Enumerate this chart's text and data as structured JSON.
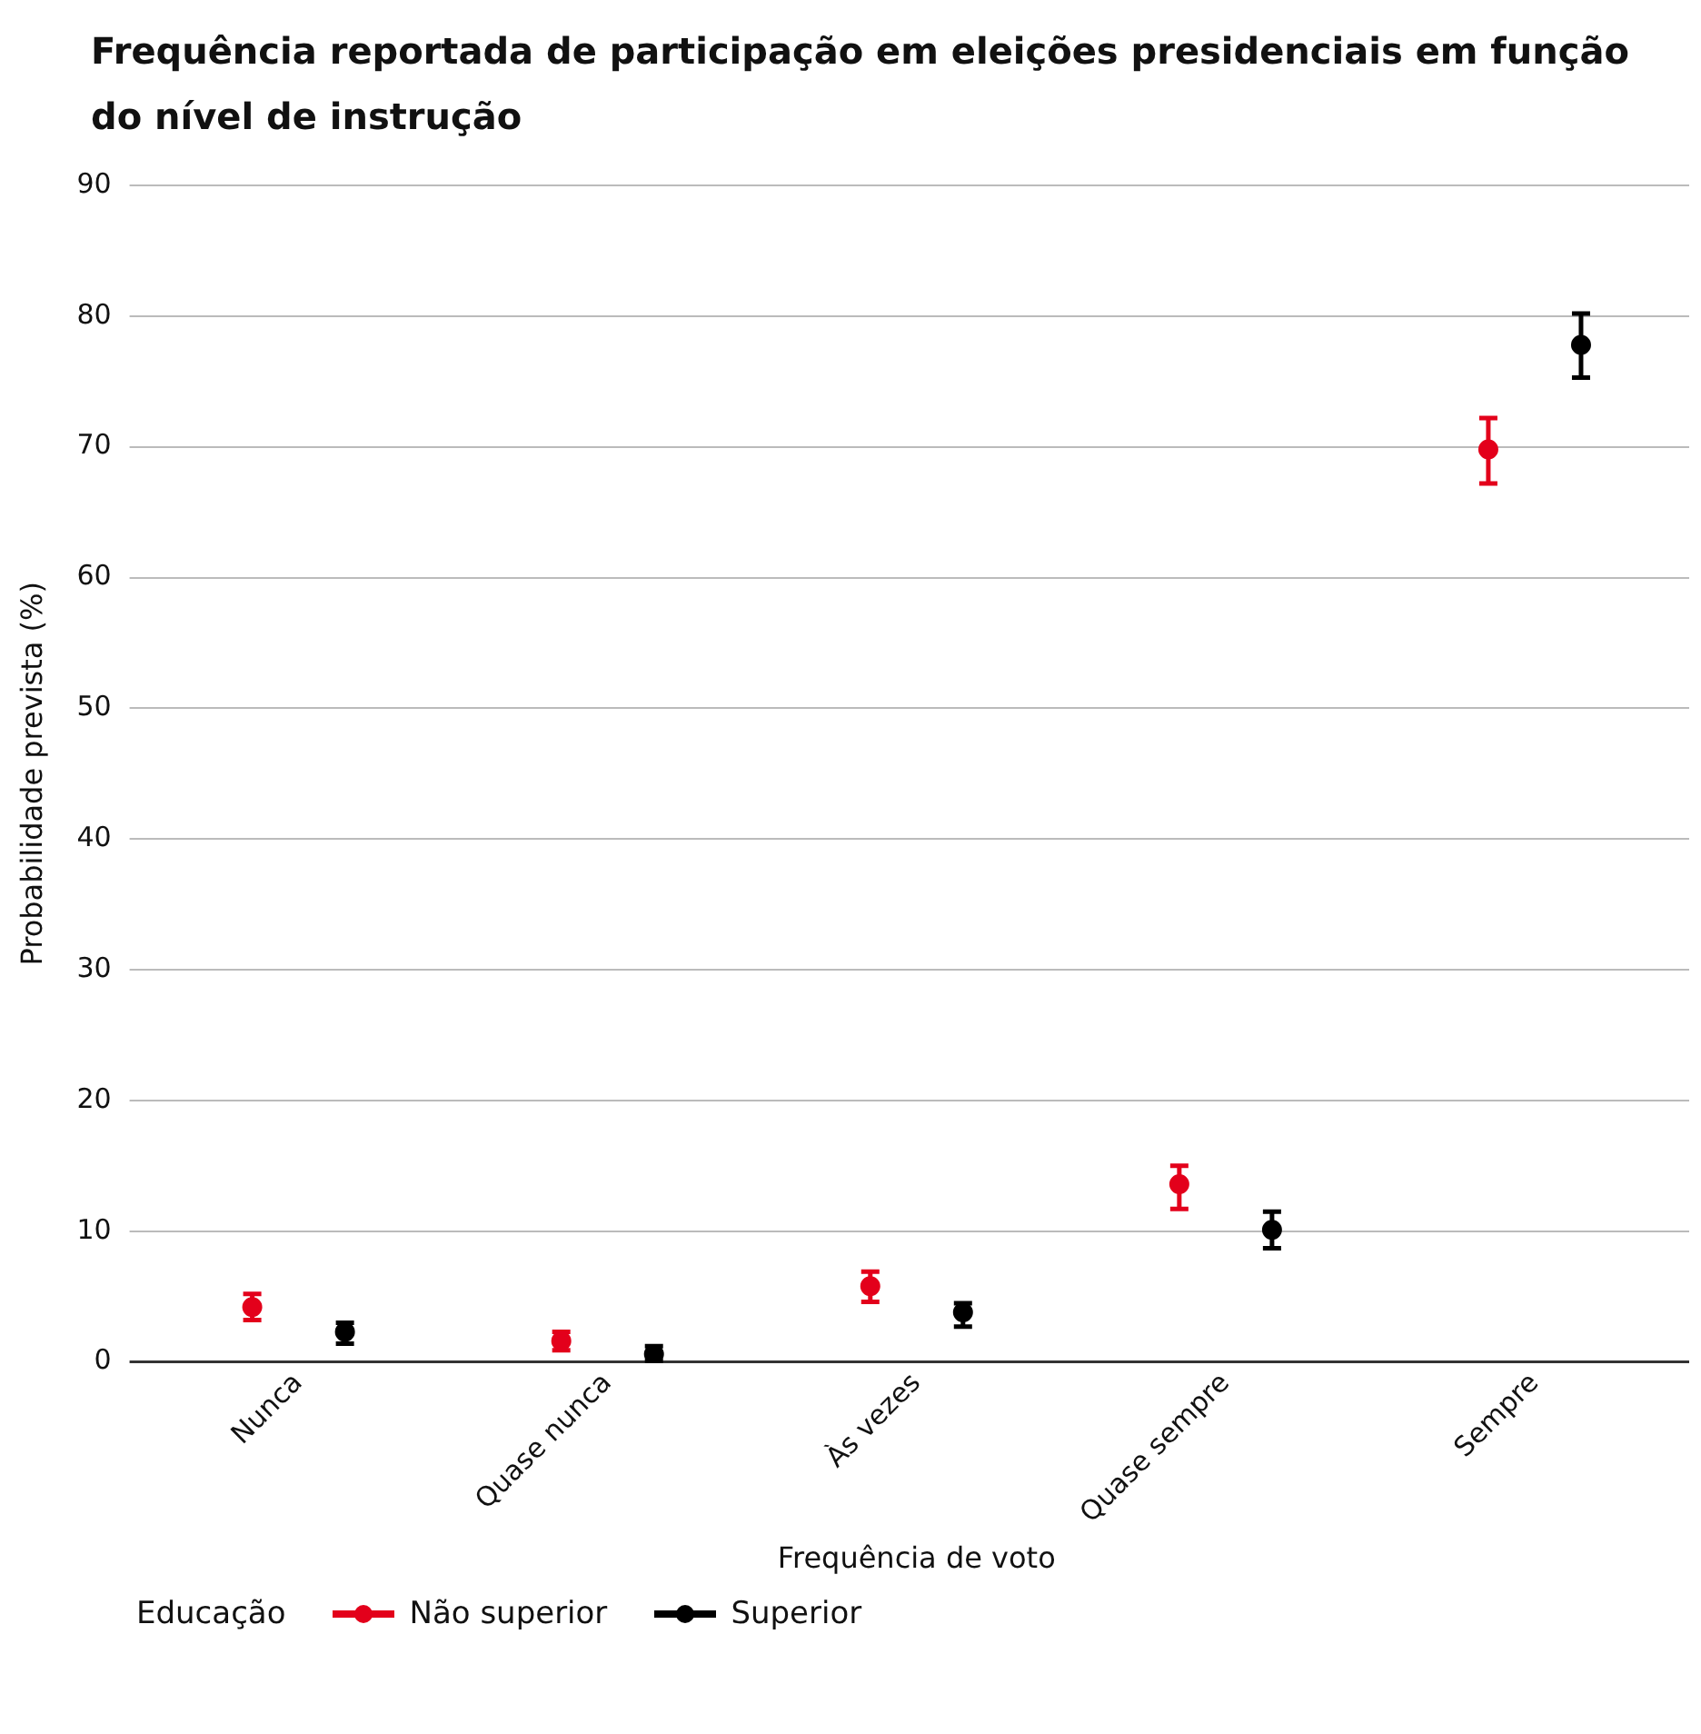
{
  "chart_data": {
    "type": "scatter",
    "title": "Frequência reportada de participação em eleições presidenciais em função do nível de instrução",
    "xlabel": "Frequência de voto",
    "ylabel": "Probabilidade prevista (%)",
    "legend_title": "Educação",
    "categories": [
      "Nunca",
      "Quase nunca",
      "Às vezes",
      "Quase sempre",
      "Sempre"
    ],
    "series": [
      {
        "name": "Não superior",
        "color": "#e3001b",
        "values": [
          4.2,
          1.6,
          5.8,
          13.6,
          69.8
        ],
        "errors": [
          [
            3.2,
            5.2
          ],
          [
            0.9,
            2.3
          ],
          [
            4.6,
            6.9
          ],
          [
            11.7,
            15.0
          ],
          [
            67.2,
            72.2
          ]
        ]
      },
      {
        "name": "Superior",
        "color": "#000000",
        "values": [
          2.3,
          0.6,
          3.8,
          10.1,
          77.8
        ],
        "errors": [
          [
            1.4,
            3.0
          ],
          [
            0.1,
            1.2
          ],
          [
            2.7,
            4.5
          ],
          [
            8.7,
            11.5
          ],
          [
            75.3,
            80.2
          ]
        ]
      }
    ],
    "ylim": [
      0,
      90
    ],
    "yticks": [
      0,
      10,
      20,
      30,
      40,
      50,
      60,
      70,
      80,
      90
    ],
    "grid": "y",
    "legend": "bottom",
    "marker": "circle"
  }
}
